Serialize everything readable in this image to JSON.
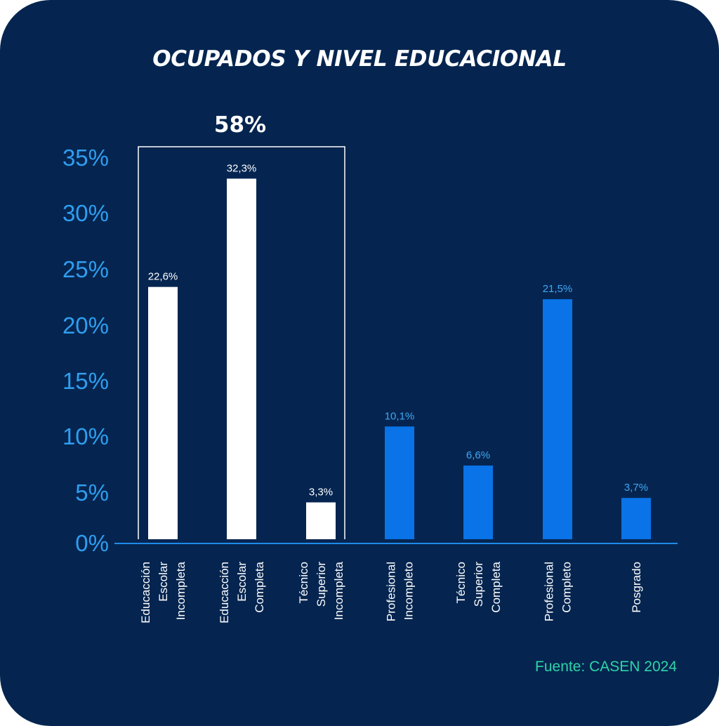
{
  "chart_data": {
    "type": "bar",
    "title": "OCUPADOS Y NIVEL EDUCACIONAL",
    "categories": [
      [
        "Educacción",
        "Escolar",
        "Incompleta"
      ],
      [
        "Educacción",
        "Escolar",
        "Completa"
      ],
      [
        "Técnico",
        "Superior",
        "Incompleta"
      ],
      [
        "Profesional",
        "Incompleto"
      ],
      [
        "Técnico",
        "Superior",
        "Completa"
      ],
      [
        "Profesional",
        "Completo"
      ],
      [
        "Posgrado"
      ]
    ],
    "values": [
      22.6,
      32.3,
      3.3,
      10.1,
      6.6,
      21.5,
      3.7
    ],
    "value_labels": [
      "22,6%",
      "32,3%",
      "3,3%",
      "10,1%",
      "6,6%",
      "21,5%",
      "3,7%"
    ],
    "yticks": [
      0,
      5,
      10,
      15,
      20,
      25,
      30,
      35
    ],
    "ytick_labels": [
      "0%",
      "5%",
      "10%",
      "15%",
      "20%",
      "25%",
      "30%",
      "35%"
    ],
    "ylim": [
      0,
      35
    ],
    "grid": false,
    "highlight": {
      "label": "58%",
      "categories": [
        0,
        1,
        2
      ]
    },
    "colors": {
      "highlighted_bar": "#ffffff",
      "bar": "#0a73e8",
      "axis": "#1f8be8",
      "tick_label": "#2f9ef0",
      "value_label_highlighted": "#ffffff",
      "value_label": "#3fa8f5",
      "background": "#052550"
    }
  },
  "source": "Fuente: CASEN 2024"
}
